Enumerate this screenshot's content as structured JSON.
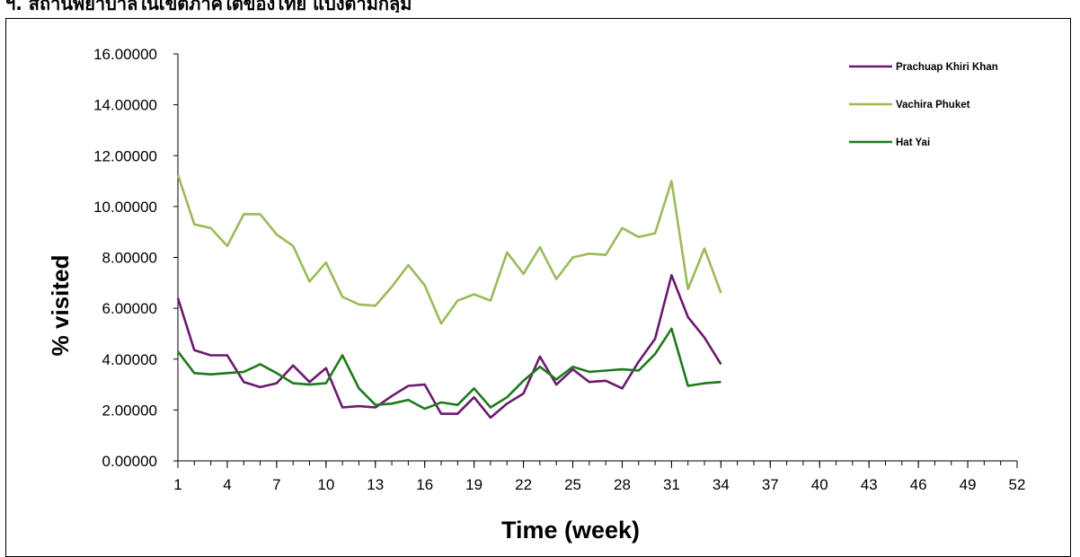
{
  "header": {
    "text": "ฯ.  สถานพยาบาลในเขตภาคใต้ของไทย แบ่งตามกลุ่ม"
  },
  "chart_data": {
    "type": "line",
    "title": "",
    "xlabel": "Time (week)",
    "ylabel": "% visited",
    "x_ticks": [
      1,
      4,
      7,
      10,
      13,
      16,
      19,
      22,
      25,
      28,
      31,
      34,
      37,
      40,
      43,
      46,
      49,
      52
    ],
    "xlim": [
      1,
      52
    ],
    "y_ticks": [
      "0.00000",
      "2.00000",
      "4.00000",
      "6.00000",
      "8.00000",
      "10.00000",
      "12.00000",
      "14.00000",
      "16.00000"
    ],
    "ylim": [
      0,
      16
    ],
    "grid": false,
    "legend_position": "top-right",
    "x": [
      1,
      2,
      3,
      4,
      5,
      6,
      7,
      8,
      9,
      10,
      11,
      12,
      13,
      14,
      15,
      16,
      17,
      18,
      19,
      20,
      21,
      22,
      23,
      24,
      25,
      26,
      27,
      28,
      29,
      30,
      31,
      32,
      33,
      34
    ],
    "series": [
      {
        "name": "Prachuap Khiri Khan",
        "color": "#6b1a6e",
        "values": [
          6.4,
          4.35,
          4.15,
          4.15,
          3.1,
          2.9,
          3.05,
          3.75,
          3.1,
          3.65,
          2.1,
          2.15,
          2.1,
          2.55,
          2.95,
          3.0,
          1.85,
          1.85,
          2.5,
          1.7,
          2.25,
          2.65,
          4.1,
          3.0,
          3.6,
          3.1,
          3.15,
          2.85,
          3.9,
          4.8,
          7.3,
          5.65,
          4.85,
          3.8
        ]
      },
      {
        "name": "Vachira Phuket",
        "color": "#9bbb59",
        "values": [
          11.25,
          9.3,
          9.15,
          8.45,
          9.7,
          9.7,
          8.9,
          8.45,
          7.05,
          7.8,
          6.45,
          6.15,
          6.1,
          6.85,
          7.7,
          6.9,
          5.4,
          6.3,
          6.55,
          6.3,
          8.2,
          7.35,
          8.4,
          7.15,
          8.0,
          8.15,
          8.1,
          9.15,
          8.8,
          8.95,
          11.0,
          6.75,
          8.35,
          6.6
        ]
      },
      {
        "name": "Hat Yai",
        "color": "#1e7a1e",
        "values": [
          4.3,
          3.45,
          3.4,
          3.45,
          3.5,
          3.8,
          3.45,
          3.05,
          3.0,
          3.05,
          4.15,
          2.85,
          2.2,
          2.25,
          2.4,
          2.05,
          2.3,
          2.2,
          2.85,
          2.1,
          2.5,
          3.15,
          3.7,
          3.2,
          3.7,
          3.5,
          3.55,
          3.6,
          3.55,
          4.2,
          5.2,
          2.95,
          3.05,
          3.1
        ]
      }
    ]
  }
}
